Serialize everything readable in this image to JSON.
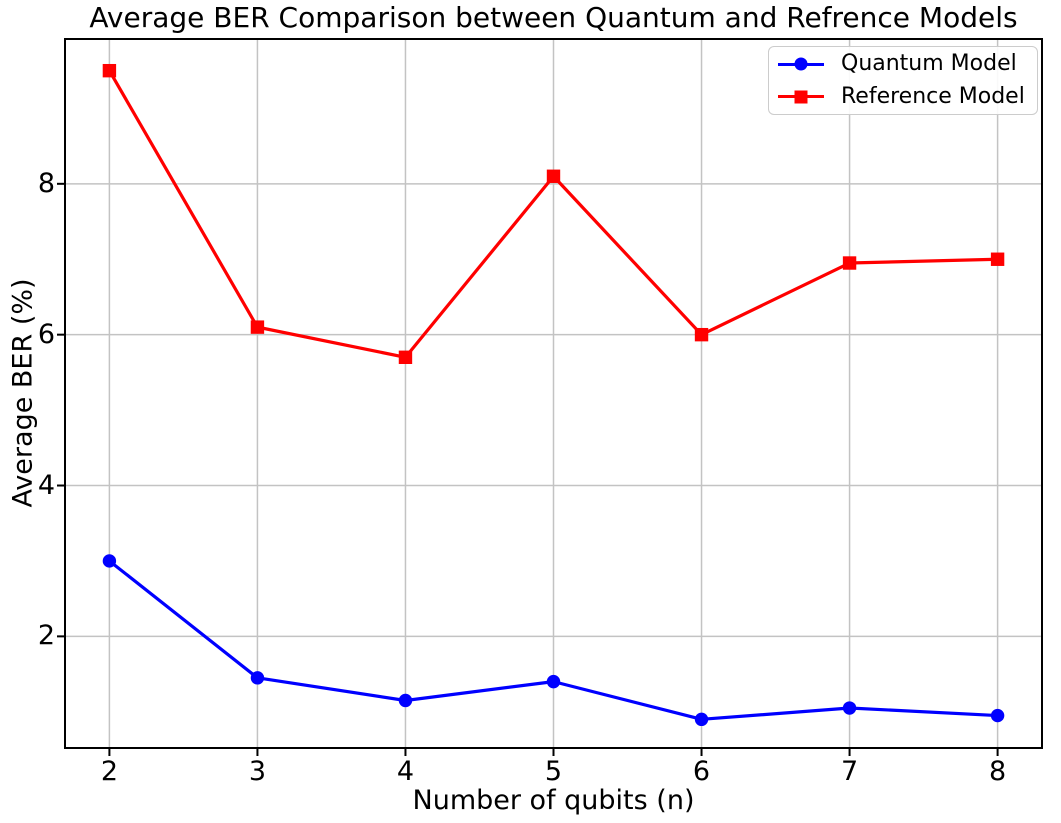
{
  "chart_data": {
    "type": "line",
    "title": "Average BER Comparison between Quantum and Refrence Models",
    "xlabel": "Number of qubits (n)",
    "ylabel": "Average BER (%)",
    "x": [
      2,
      3,
      4,
      5,
      6,
      7,
      8
    ],
    "series": [
      {
        "name": "Quantum Model",
        "color": "#0000ff",
        "marker": "circle",
        "values": [
          3.0,
          1.45,
          1.15,
          1.4,
          0.9,
          1.05,
          0.95
        ]
      },
      {
        "name": "Reference Model",
        "color": "#ff0000",
        "marker": "square",
        "values": [
          9.5,
          6.1,
          5.7,
          8.1,
          6.0,
          6.95,
          7.0
        ]
      }
    ],
    "xticks": [
      "2",
      "3",
      "4",
      "5",
      "6",
      "7",
      "8"
    ],
    "yticks": [
      "2",
      "4",
      "6",
      "8"
    ],
    "xtick_values": [
      2,
      3,
      4,
      5,
      6,
      7,
      8
    ],
    "ytick_values": [
      2,
      4,
      6,
      8
    ],
    "xlim": [
      1.7,
      8.3
    ],
    "ylim": [
      0.52,
      9.92
    ],
    "grid": true,
    "grid_color": "#c3c3c3",
    "axis_color": "#000000",
    "background_color": "#ffffff",
    "legend_position": "upper right"
  },
  "legend": {
    "items": [
      {
        "label": "Quantum Model",
        "color": "#0000ff",
        "marker": "circle"
      },
      {
        "label": "Reference Model",
        "color": "#ff0000",
        "marker": "square"
      }
    ]
  }
}
